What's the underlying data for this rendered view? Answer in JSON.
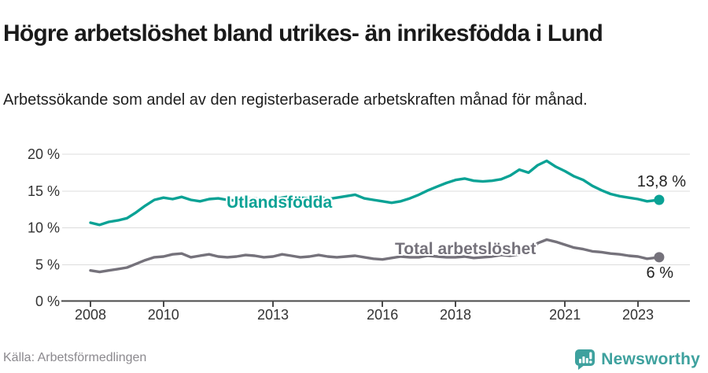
{
  "header": {
    "title": "Högre arbetslöshet bland utrikes- än inrikesfödda i Lund",
    "subtitle": "Arbetssökande som andel av den registerbaserade arbetskraften månad för månad."
  },
  "footer": {
    "source": "Källa: Arbetsförmedlingen",
    "brand": "Newsworthy"
  },
  "colors": {
    "teal": "#0aa295",
    "gray": "#75727b",
    "grid": "#dcdcdc",
    "axis": "#4a4a4a",
    "tick_text": "#333333",
    "logo_teal": "#3ea19e"
  },
  "chart_data": {
    "type": "line",
    "title": "Högre arbetslöshet bland utrikes- än inrikesfödda i Lund",
    "xlabel": "",
    "ylabel": "Arbetssökande som andel av den registerbaserade arbetskraften",
    "grid": true,
    "x_ticks": [
      {
        "value": 2008,
        "label": "2008"
      },
      {
        "value": 2010,
        "label": "2010"
      },
      {
        "value": 2013,
        "label": "2013"
      },
      {
        "value": 2016,
        "label": "2016"
      },
      {
        "value": 2018,
        "label": "2018"
      },
      {
        "value": 2021,
        "label": "2021"
      },
      {
        "value": 2023,
        "label": "2023"
      }
    ],
    "y_ticks": [
      {
        "value": 0,
        "label": "0 %"
      },
      {
        "value": 5,
        "label": "5 %"
      },
      {
        "value": 10,
        "label": "10 %"
      },
      {
        "value": 15,
        "label": "15 %"
      },
      {
        "value": 20,
        "label": "20 %"
      }
    ],
    "ylim": [
      0,
      20
    ],
    "xlim": [
      2007.25,
      2024.4
    ],
    "series": [
      {
        "name": "Utlandsfödda",
        "color": "#0aa295",
        "end_label": "13,8 %",
        "end_value": 13.8,
        "points": [
          [
            2008.0,
            10.7
          ],
          [
            2008.25,
            10.4
          ],
          [
            2008.5,
            10.8
          ],
          [
            2008.75,
            11.0
          ],
          [
            2009.0,
            11.3
          ],
          [
            2009.25,
            12.1
          ],
          [
            2009.5,
            13.0
          ],
          [
            2009.75,
            13.8
          ],
          [
            2010.0,
            14.1
          ],
          [
            2010.25,
            13.9
          ],
          [
            2010.5,
            14.2
          ],
          [
            2010.75,
            13.8
          ],
          [
            2011.0,
            13.6
          ],
          [
            2011.25,
            13.9
          ],
          [
            2011.5,
            14.0
          ],
          [
            2011.75,
            13.8
          ],
          [
            2012.0,
            13.7
          ],
          [
            2012.25,
            13.9
          ],
          [
            2012.5,
            14.0
          ],
          [
            2012.75,
            13.8
          ],
          [
            2013.0,
            13.8
          ],
          [
            2013.25,
            14.1
          ],
          [
            2013.5,
            14.3
          ],
          [
            2013.75,
            14.1
          ],
          [
            2014.0,
            14.0
          ],
          [
            2014.25,
            14.2
          ],
          [
            2014.5,
            13.9
          ],
          [
            2014.75,
            14.1
          ],
          [
            2015.0,
            14.3
          ],
          [
            2015.25,
            14.5
          ],
          [
            2015.5,
            14.0
          ],
          [
            2015.75,
            13.8
          ],
          [
            2016.0,
            13.6
          ],
          [
            2016.25,
            13.4
          ],
          [
            2016.5,
            13.6
          ],
          [
            2016.75,
            14.0
          ],
          [
            2017.0,
            14.5
          ],
          [
            2017.25,
            15.1
          ],
          [
            2017.5,
            15.6
          ],
          [
            2017.75,
            16.1
          ],
          [
            2018.0,
            16.5
          ],
          [
            2018.25,
            16.7
          ],
          [
            2018.5,
            16.4
          ],
          [
            2018.75,
            16.3
          ],
          [
            2019.0,
            16.4
          ],
          [
            2019.25,
            16.6
          ],
          [
            2019.5,
            17.1
          ],
          [
            2019.75,
            17.9
          ],
          [
            2020.0,
            17.5
          ],
          [
            2020.25,
            18.5
          ],
          [
            2020.5,
            19.1
          ],
          [
            2020.75,
            18.3
          ],
          [
            2021.0,
            17.7
          ],
          [
            2021.25,
            17.0
          ],
          [
            2021.5,
            16.5
          ],
          [
            2021.75,
            15.7
          ],
          [
            2022.0,
            15.1
          ],
          [
            2022.25,
            14.6
          ],
          [
            2022.5,
            14.3
          ],
          [
            2022.75,
            14.1
          ],
          [
            2023.0,
            13.9
          ],
          [
            2023.25,
            13.6
          ],
          [
            2023.58,
            13.8
          ]
        ]
      },
      {
        "name": "Total arbetslöshet",
        "color": "#75727b",
        "end_label": "6 %",
        "end_value": 6.0,
        "points": [
          [
            2008.0,
            4.2
          ],
          [
            2008.25,
            4.0
          ],
          [
            2008.5,
            4.2
          ],
          [
            2008.75,
            4.4
          ],
          [
            2009.0,
            4.6
          ],
          [
            2009.25,
            5.1
          ],
          [
            2009.5,
            5.6
          ],
          [
            2009.75,
            6.0
          ],
          [
            2010.0,
            6.1
          ],
          [
            2010.25,
            6.4
          ],
          [
            2010.5,
            6.5
          ],
          [
            2010.75,
            6.0
          ],
          [
            2011.0,
            6.2
          ],
          [
            2011.25,
            6.4
          ],
          [
            2011.5,
            6.1
          ],
          [
            2011.75,
            6.0
          ],
          [
            2012.0,
            6.1
          ],
          [
            2012.25,
            6.3
          ],
          [
            2012.5,
            6.2
          ],
          [
            2012.75,
            6.0
          ],
          [
            2013.0,
            6.1
          ],
          [
            2013.25,
            6.4
          ],
          [
            2013.5,
            6.2
          ],
          [
            2013.75,
            6.0
          ],
          [
            2014.0,
            6.1
          ],
          [
            2014.25,
            6.3
          ],
          [
            2014.5,
            6.1
          ],
          [
            2014.75,
            6.0
          ],
          [
            2015.0,
            6.1
          ],
          [
            2015.25,
            6.2
          ],
          [
            2015.5,
            6.0
          ],
          [
            2015.75,
            5.8
          ],
          [
            2016.0,
            5.7
          ],
          [
            2016.25,
            5.9
          ],
          [
            2016.5,
            6.1
          ],
          [
            2016.75,
            6.0
          ],
          [
            2017.0,
            6.0
          ],
          [
            2017.25,
            6.2
          ],
          [
            2017.5,
            6.1
          ],
          [
            2017.75,
            6.0
          ],
          [
            2018.0,
            6.0
          ],
          [
            2018.25,
            6.1
          ],
          [
            2018.5,
            5.9
          ],
          [
            2018.75,
            6.0
          ],
          [
            2019.0,
            6.1
          ],
          [
            2019.25,
            6.3
          ],
          [
            2019.5,
            6.2
          ],
          [
            2019.75,
            6.4
          ],
          [
            2020.0,
            6.6
          ],
          [
            2020.25,
            7.9
          ],
          [
            2020.5,
            8.4
          ],
          [
            2020.75,
            8.1
          ],
          [
            2021.0,
            7.7
          ],
          [
            2021.25,
            7.3
          ],
          [
            2021.5,
            7.1
          ],
          [
            2021.75,
            6.8
          ],
          [
            2022.0,
            6.7
          ],
          [
            2022.25,
            6.5
          ],
          [
            2022.5,
            6.4
          ],
          [
            2022.75,
            6.2
          ],
          [
            2023.0,
            6.1
          ],
          [
            2023.25,
            5.8
          ],
          [
            2023.58,
            6.0
          ]
        ]
      }
    ],
    "legend_position": "inline-labels"
  }
}
